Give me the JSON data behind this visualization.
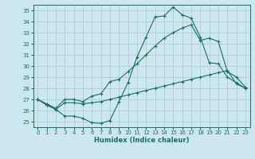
{
  "xlabel": "Humidex (Indice chaleur)",
  "xlim": [
    -0.5,
    23.5
  ],
  "ylim": [
    24.5,
    35.5
  ],
  "yticks": [
    25,
    26,
    27,
    28,
    29,
    30,
    31,
    32,
    33,
    34,
    35
  ],
  "xticks": [
    0,
    1,
    2,
    3,
    4,
    5,
    6,
    7,
    8,
    9,
    10,
    11,
    12,
    13,
    14,
    15,
    16,
    17,
    18,
    19,
    20,
    21,
    22,
    23
  ],
  "bg_color": "#cce8ee",
  "line_color": "#1a6e6a",
  "grid_color": "#aac8cc",
  "line1_y": [
    27.0,
    26.5,
    26.1,
    25.5,
    25.5,
    25.3,
    24.9,
    24.85,
    25.1,
    26.8,
    28.5,
    30.8,
    32.6,
    34.4,
    34.5,
    35.3,
    34.6,
    34.3,
    32.6,
    30.3,
    30.2,
    29.0,
    28.5,
    28.0
  ],
  "line2_y": [
    27.0,
    26.6,
    26.2,
    27.0,
    27.0,
    26.8,
    27.3,
    27.5,
    28.6,
    28.8,
    29.5,
    30.2,
    31.0,
    31.8,
    32.5,
    33.0,
    33.4,
    33.7,
    32.3,
    32.5,
    32.2,
    29.5,
    29.0,
    28.1
  ],
  "line3_y": [
    27.0,
    26.5,
    26.1,
    26.7,
    26.7,
    26.6,
    26.7,
    26.8,
    27.0,
    27.2,
    27.4,
    27.6,
    27.8,
    28.0,
    28.2,
    28.4,
    28.6,
    28.8,
    29.0,
    29.2,
    29.4,
    29.6,
    28.4,
    28.0
  ]
}
